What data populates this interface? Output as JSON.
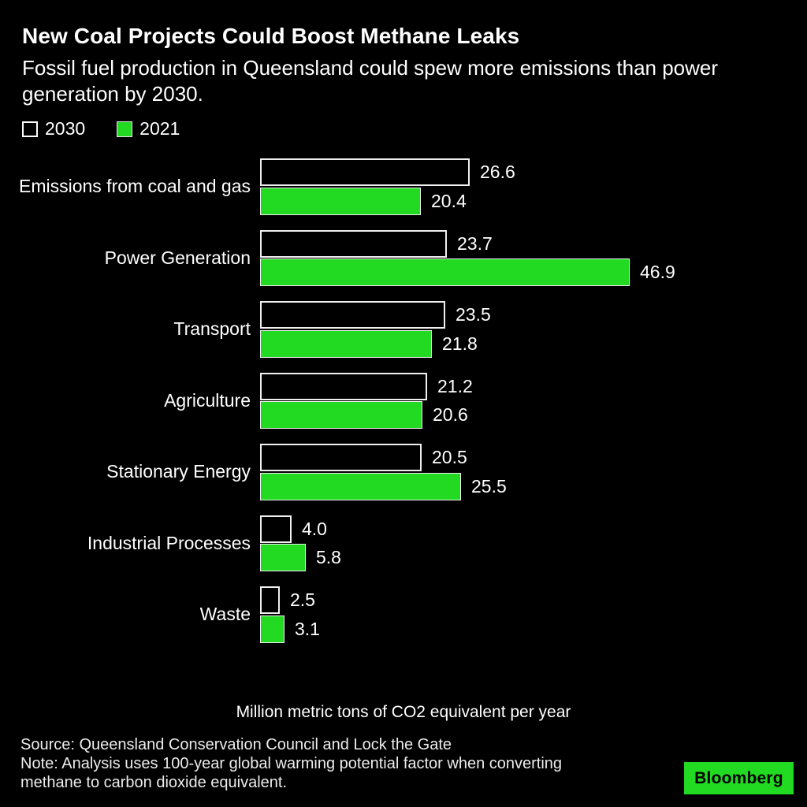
{
  "header": {
    "title": "New Coal Projects Could Boost Methane Leaks",
    "subtitle_lines": [
      "Fossil fuel production in Queensland could spew more emissions than power",
      "generation by 2030."
    ]
  },
  "legend": {
    "items": [
      {
        "label": "2030",
        "swatch": "outlined-black"
      },
      {
        "label": "2021",
        "swatch": "green-fill"
      }
    ]
  },
  "chart_data": {
    "type": "bar",
    "orientation": "horizontal",
    "title": "New Coal Projects Could Boost Methane Leaks",
    "categories": [
      "Emissions from coal and gas",
      "Power Generation",
      "Transport",
      "Agriculture",
      "Stationary Energy",
      "Industrial Processes",
      "Waste"
    ],
    "series": [
      {
        "name": "2030",
        "values": [
          26.6,
          23.7,
          23.5,
          21.2,
          20.5,
          4.0,
          2.5
        ]
      },
      {
        "name": "2021",
        "values": [
          20.4,
          46.9,
          21.8,
          20.6,
          25.5,
          5.8,
          3.1
        ]
      }
    ],
    "xlabel": "Million metric tons of CO2 equivalent per year",
    "xlim": [
      0,
      50
    ],
    "grid": false,
    "legend_position": "top-left",
    "value_labels": "one-decimal"
  },
  "footer": {
    "source": "Source: Queensland Conservation Council and Lock the Gate",
    "note_lines": [
      "Note: Analysis uses 100-year global warming potential factor when converting",
      "methane to carbon dioxide equivalent."
    ],
    "logo_label": "Bloomberg"
  },
  "colors": {
    "background": "#000000",
    "text": "#ffffff",
    "green": "#21da21",
    "bar_border": "#f0f0f0"
  }
}
